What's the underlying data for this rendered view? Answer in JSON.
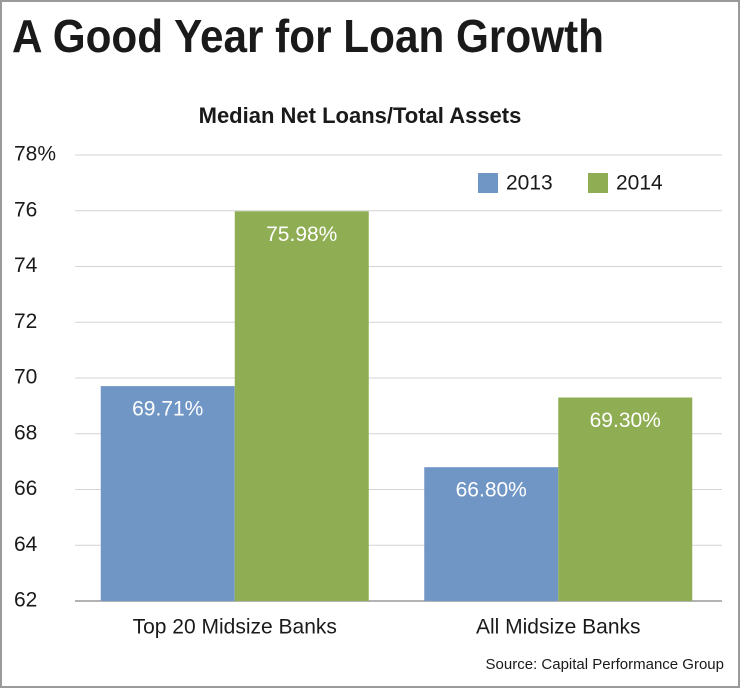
{
  "chart_data": {
    "type": "bar",
    "title": "A Good Year for Loan Growth",
    "subtitle": "Median Net Loans/Total Assets",
    "categories": [
      "Top 20 Midsize Banks",
      "All Midsize Banks"
    ],
    "series": [
      {
        "name": "2013",
        "color": "#7096c6",
        "values": [
          69.71,
          66.8
        ],
        "value_labels": [
          "69.71%",
          "66.80%"
        ]
      },
      {
        "name": "2014",
        "color": "#8fad52",
        "values": [
          75.98,
          69.3
        ],
        "value_labels": [
          "75.98%",
          "69.30%"
        ]
      }
    ],
    "ylim": [
      62,
      78
    ],
    "yticks": [
      62,
      64,
      66,
      68,
      70,
      72,
      74,
      76,
      {
        "value": 78,
        "label": "78%"
      }
    ],
    "grid": true,
    "legend": "upper right",
    "source": "Source: Capital Performance Group"
  }
}
